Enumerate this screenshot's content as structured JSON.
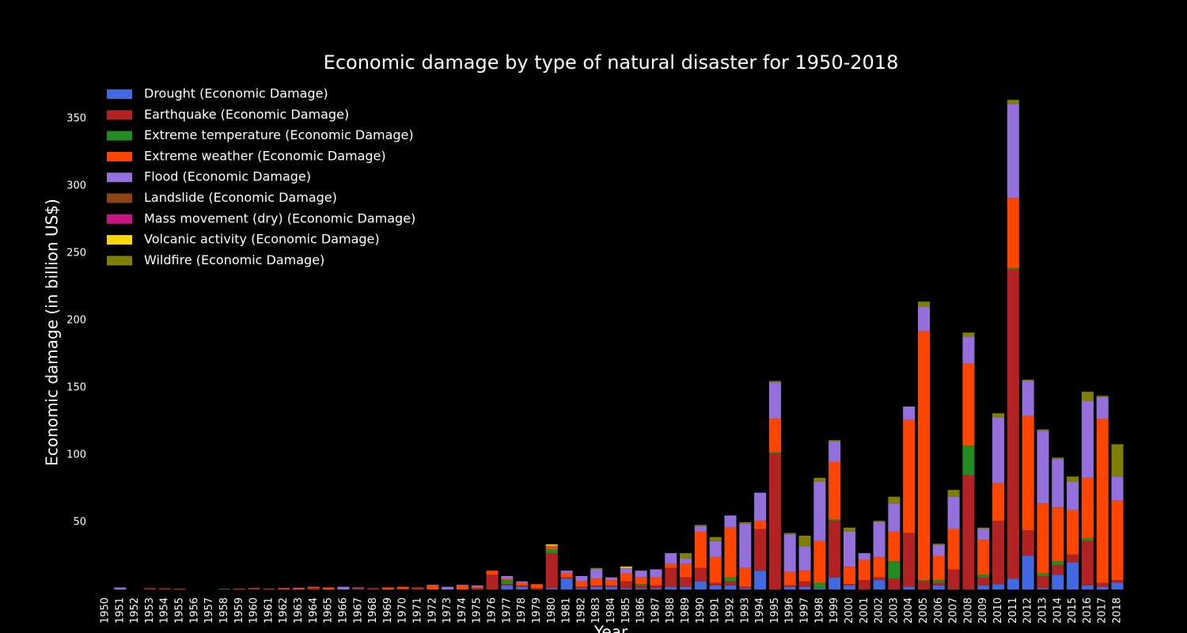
{
  "chart_data": {
    "type": "stacked_bar",
    "title": "Economic damage by type of natural disaster for 1950-2018",
    "x_label": "Year",
    "y_label": "Economic damage (in billion US$)",
    "categories": [
      "1950",
      "1951",
      "1952",
      "1953",
      "1954",
      "1955",
      "1956",
      "1957",
      "1958",
      "1959",
      "1960",
      "1961",
      "1962",
      "1963",
      "1964",
      "1965",
      "1966",
      "1967",
      "1968",
      "1969",
      "1970",
      "1971",
      "1972",
      "1973",
      "1974",
      "1975",
      "1976",
      "1977",
      "1978",
      "1979",
      "1980",
      "1981",
      "1982",
      "1983",
      "1984",
      "1985",
      "1986",
      "1987",
      "1988",
      "1989",
      "1990",
      "1991",
      "1992",
      "1993",
      "1994",
      "1995",
      "1996",
      "1997",
      "1998",
      "1999",
      "2000",
      "2001",
      "2002",
      "2003",
      "2004",
      "2005",
      "2006",
      "2007",
      "2008",
      "2009",
      "2010",
      "2011",
      "2012",
      "2013",
      "2014",
      "2015",
      "2016",
      "2017",
      "2018"
    ],
    "ylim": [
      0,
      382
    ],
    "yticks": [
      50,
      100,
      150,
      200,
      250,
      300,
      350
    ],
    "legend": "upper-left",
    "series": [
      {
        "name": "Drought (Economic Damage)",
        "color": "#4169e1",
        "values": [
          0,
          0,
          0,
          0,
          0,
          0,
          0,
          0,
          0,
          0,
          0,
          0,
          0,
          0,
          0,
          0,
          0,
          0,
          0,
          0,
          0,
          0,
          0,
          0,
          0,
          0,
          0,
          3,
          2,
          0,
          1,
          8,
          1,
          2,
          2,
          1,
          1,
          1,
          2,
          2,
          6,
          3,
          3,
          1,
          14,
          0,
          2,
          2,
          1,
          9,
          3,
          0,
          7,
          0,
          2,
          0,
          3,
          0,
          0,
          3,
          4,
          8,
          25,
          1,
          11,
          20,
          3,
          2,
          5
        ]
      },
      {
        "name": "Earthquake (Economic Damage)",
        "color": "#b22222",
        "values": [
          0,
          0,
          0,
          1,
          0.5,
          0.3,
          0,
          0,
          0,
          0,
          0.5,
          0,
          0,
          0,
          1,
          0,
          0,
          1,
          1,
          0,
          0.5,
          1,
          0,
          0,
          0,
          1,
          11,
          1,
          1,
          1,
          26,
          1,
          1,
          1,
          1,
          5,
          2,
          2,
          14,
          7,
          10,
          2,
          3,
          1,
          31,
          101,
          1,
          4,
          0,
          42,
          1,
          7,
          2,
          8,
          40,
          6,
          2,
          15,
          85,
          6,
          47,
          230,
          19,
          9,
          7,
          6,
          33,
          3,
          2
        ]
      },
      {
        "name": "Extreme temperature (Economic Damage)",
        "color": "#228b22",
        "values": [
          0,
          0,
          0,
          0,
          0,
          0,
          0,
          0,
          0.5,
          0,
          0,
          0,
          0,
          0,
          0,
          0,
          0,
          0,
          0,
          0,
          0,
          0,
          0,
          0,
          0,
          0,
          0,
          3,
          0,
          0,
          3,
          0,
          0,
          0,
          0,
          0,
          1,
          0,
          0,
          0,
          0,
          0,
          3,
          0,
          0,
          1,
          0,
          0,
          4,
          1,
          0,
          0,
          0,
          13,
          0,
          1,
          2,
          0,
          22,
          2,
          0,
          1,
          0,
          2,
          3,
          0,
          2,
          0,
          0
        ]
      },
      {
        "name": "Extreme weather (Economic Damage)",
        "color": "#ff4500",
        "values": [
          0,
          0,
          0,
          0,
          0.3,
          0.3,
          0,
          0,
          0,
          0.5,
          0.5,
          0.5,
          1,
          1,
          1,
          1.5,
          0,
          0,
          0,
          1.5,
          1.5,
          0.5,
          3,
          0,
          3,
          1,
          3,
          1,
          2,
          3,
          2,
          3,
          4,
          5,
          4,
          6,
          5,
          6,
          3,
          10,
          27,
          19,
          37,
          14,
          6,
          25,
          10,
          8,
          31,
          43,
          13,
          15,
          15,
          22,
          84,
          185,
          18,
          30,
          61,
          26,
          28,
          52,
          85,
          52,
          40,
          33,
          45,
          122,
          59
        ]
      },
      {
        "name": "Flood (Economic Damage)",
        "color": "#9370db",
        "values": [
          0,
          1.5,
          0,
          0,
          0,
          0,
          0,
          0,
          0,
          0,
          0,
          0,
          0,
          0.3,
          0,
          0,
          2,
          0.5,
          0,
          0,
          0,
          0,
          0.5,
          2,
          0.5,
          1,
          0,
          2,
          1,
          0,
          0.5,
          2,
          4,
          7,
          2,
          4,
          5,
          6,
          8,
          4,
          4,
          12,
          9,
          33,
          21,
          27,
          28,
          18,
          44,
          15,
          26,
          5,
          26,
          21,
          10,
          18,
          8,
          24,
          20,
          8,
          49,
          70,
          26,
          54,
          36,
          21,
          57,
          16,
          18
        ]
      },
      {
        "name": "Landslide (Economic Damage)",
        "color": "#8b4513",
        "values": [
          0,
          0,
          0,
          0,
          0,
          0,
          0,
          0,
          0,
          0,
          0,
          0,
          0,
          0,
          0,
          0,
          0,
          0,
          0,
          0,
          0,
          0,
          0,
          0,
          0,
          0,
          0,
          0,
          0,
          0,
          0,
          0,
          0,
          0,
          0,
          0,
          0,
          0,
          0,
          0,
          0,
          0,
          0,
          0,
          0,
          0,
          0,
          0,
          0,
          0,
          0,
          0,
          0,
          0,
          0,
          0,
          0,
          0,
          0,
          0,
          0,
          0,
          0,
          0,
          0,
          0,
          0,
          0,
          0
        ]
      },
      {
        "name": "Mass movement (dry) (Economic Damage)",
        "color": "#c71585",
        "values": [
          0,
          0,
          0,
          0,
          0,
          0,
          0,
          0,
          0,
          0,
          0,
          0,
          0,
          0,
          0,
          0,
          0,
          0,
          0,
          0,
          0,
          0,
          0,
          0,
          0,
          0,
          0,
          0,
          0,
          0,
          0,
          0,
          0,
          0,
          0,
          0,
          0,
          0,
          0,
          0,
          0,
          0,
          0,
          0,
          0,
          0,
          0,
          0,
          0,
          0,
          0,
          0,
          0,
          0,
          0,
          0,
          0,
          0,
          0,
          0,
          0,
          0,
          0,
          0,
          0,
          0,
          0,
          0,
          0
        ]
      },
      {
        "name": "Volcanic activity (Economic Damage)",
        "color": "#ffd700",
        "values": [
          0,
          0,
          0,
          0,
          0,
          0,
          0,
          0,
          0,
          0,
          0,
          0,
          0,
          0,
          0,
          0,
          0,
          0,
          0,
          0,
          0,
          0,
          0,
          0,
          0,
          0,
          0,
          0,
          0,
          0,
          1,
          0,
          0,
          0,
          0,
          1,
          0,
          0,
          0,
          0,
          0,
          0,
          0,
          0,
          0,
          0,
          0,
          0,
          0,
          0,
          0,
          0,
          0,
          0,
          0,
          0,
          0,
          0,
          0,
          0,
          0,
          0,
          0,
          0,
          0,
          0,
          0,
          0,
          0
        ]
      },
      {
        "name": "Wildfire (Economic Damage)",
        "color": "#808000",
        "values": [
          0,
          0,
          0,
          0,
          0,
          0,
          0,
          0,
          0,
          0,
          0,
          0,
          0,
          0,
          0,
          0,
          0,
          0,
          0,
          0,
          0,
          0,
          0,
          0,
          0,
          0,
          0,
          0,
          0,
          0,
          0,
          0,
          0,
          1,
          0,
          0,
          0,
          0,
          0,
          4,
          1,
          3,
          0,
          1,
          0,
          1,
          1,
          8,
          3,
          1,
          3,
          0,
          1,
          5,
          0,
          4,
          1,
          5,
          3,
          1,
          3,
          3,
          1,
          1,
          1,
          4,
          7,
          1,
          24
        ]
      }
    ]
  }
}
